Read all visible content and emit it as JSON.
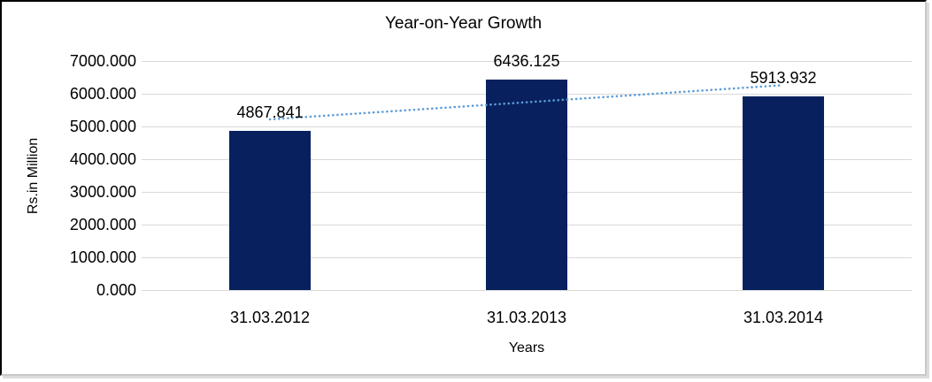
{
  "chart_data": {
    "type": "bar",
    "title": "Year-on-Year Growth",
    "categories": [
      "31.03.2012",
      "31.03.2013",
      "31.03.2014"
    ],
    "values": [
      4867.841,
      6436.125,
      5913.932
    ],
    "value_decimals": 3,
    "xlabel": "Years",
    "ylabel": "Rs.in Million",
    "ylim": [
      0,
      7000
    ],
    "ytick_step": 1000,
    "yticks": [
      "7000.000",
      "6000.000",
      "5000.000",
      "4000.000",
      "3000.000",
      "2000.000",
      "1000.000",
      "0.000"
    ],
    "grid": "horizontal",
    "legend": "none",
    "colors": {
      "bar": "#08215e",
      "gridline": "#d9d9d9",
      "text": "#000000",
      "frame_border": "#000000",
      "frame_shadow": "#dcdcdc"
    },
    "trendline": {
      "type": "linear",
      "style": "dotted",
      "color": "#5b9bd5"
    }
  }
}
